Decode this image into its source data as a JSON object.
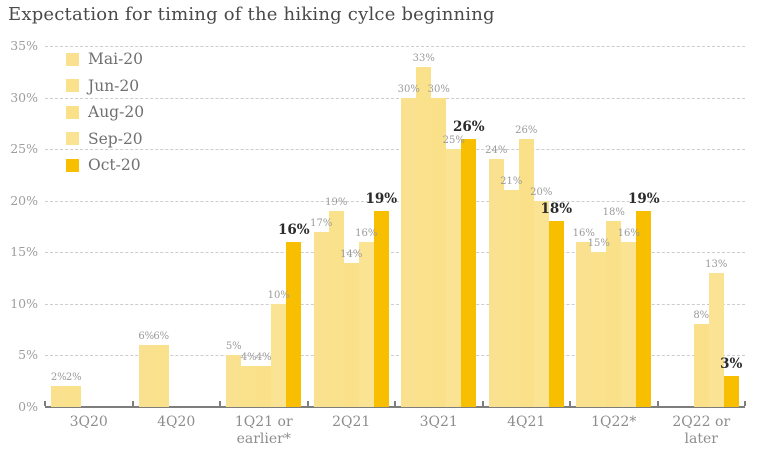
{
  "title": "Expectation for timing of the hiking cylce beginning",
  "chart_data": {
    "type": "bar",
    "title": "Expectation for timing of the hiking cylce beginning",
    "categories": [
      "3Q20",
      "4Q20",
      "1Q21 or earlier*",
      "2Q21",
      "3Q21",
      "4Q21",
      "1Q22*",
      "2Q22 or later"
    ],
    "series": [
      {
        "name": "Mai-20",
        "color": "#F9E190",
        "values": [
          2,
          6,
          5,
          17,
          30,
          24,
          16,
          null
        ]
      },
      {
        "name": "Jun-20",
        "color": "#FAE28C",
        "values": [
          2,
          6,
          4,
          19,
          33,
          21,
          15,
          null
        ]
      },
      {
        "name": "Aug-20",
        "color": "#F9E089",
        "values": [
          null,
          null,
          4,
          14,
          30,
          26,
          18,
          8
        ]
      },
      {
        "name": "Sep-20",
        "color": "#FAE493",
        "values": [
          null,
          null,
          10,
          16,
          25,
          20,
          16,
          13
        ]
      },
      {
        "name": "Oct-20",
        "color": "#F8BE00",
        "values": [
          null,
          null,
          16,
          19,
          26,
          18,
          19,
          3
        ],
        "emphasized": true
      }
    ],
    "value_label_suffix": "%",
    "value_labels_shown_for_all_bars": true,
    "emphasized_series_labels": "bold dark (Oct-20)",
    "xlabel": "",
    "ylabel": "",
    "ylim": [
      0,
      35
    ],
    "ytick_step": 5,
    "ytick_labels": [
      "0%",
      "5%",
      "10%",
      "15%",
      "20%",
      "25%",
      "30%",
      "35%"
    ],
    "grid": "horizontal dashed",
    "legend_position": "top-left inside plot",
    "legend_entries": [
      "Mai-20",
      "Jun-20",
      "Aug-20",
      "Sep-20",
      "Oct-20"
    ]
  },
  "colors": {
    "background": "#FFFFFF",
    "title_text": "#4A4A4A",
    "axis_line": "#7D7D7D",
    "axis_tick_text": "#9E9E9E",
    "category_text": "#8D8D8D",
    "gridline": "#CDCDCD",
    "bar_label_light": "#9B9B9B",
    "bar_label_dark": "#2B2B2B",
    "legend_text": "#707070"
  }
}
